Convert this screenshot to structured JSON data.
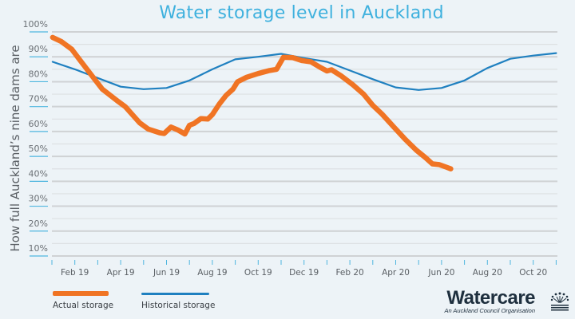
{
  "chart_data": {
    "type": "line",
    "title": "Water storage level in Auckland",
    "xlabel": "",
    "ylabel": "How full Auckland’s nine dams are",
    "ylim": [
      0,
      100
    ],
    "yticks": [
      "10%",
      "20%",
      "30%",
      "40%",
      "50%",
      "60%",
      "70%",
      "80%",
      "90%",
      "100%"
    ],
    "ytick_values": [
      10,
      20,
      30,
      40,
      50,
      60,
      70,
      80,
      90,
      100
    ],
    "xlim_months": [
      0,
      22
    ],
    "x_unit": "months since Jan 2019",
    "xticks_months": [
      0,
      1,
      2,
      3,
      4,
      5,
      6,
      7,
      8,
      9,
      10,
      11,
      12,
      13,
      14,
      15,
      16,
      17,
      18,
      19,
      20,
      21,
      22
    ],
    "xtick_labels": [
      {
        "month": 1,
        "label": "Feb 19"
      },
      {
        "month": 3,
        "label": "Apr 19"
      },
      {
        "month": 5,
        "label": "Jun 19"
      },
      {
        "month": 7,
        "label": "Aug 19"
      },
      {
        "month": 9,
        "label": "Oct 19"
      },
      {
        "month": 11,
        "label": "Dec 19"
      },
      {
        "month": 13,
        "label": "Feb 20"
      },
      {
        "month": 15,
        "label": "Apr 20"
      },
      {
        "month": 17,
        "label": "Jun 20"
      },
      {
        "month": 19,
        "label": "Aug 20"
      },
      {
        "month": 21,
        "label": "Oct 20"
      }
    ],
    "grid": true,
    "legend_position": "bottom-left",
    "series": [
      {
        "name": "Actual storage",
        "color": "#f07424",
        "points": [
          [
            0.03,
            97.8
          ],
          [
            0.4,
            96.2
          ],
          [
            0.87,
            93.0
          ],
          [
            1.2,
            89.0
          ],
          [
            1.74,
            82.5
          ],
          [
            2.2,
            77.0
          ],
          [
            2.9,
            72.0
          ],
          [
            3.2,
            70.0
          ],
          [
            3.83,
            63.5
          ],
          [
            4.2,
            61.0
          ],
          [
            4.7,
            59.5
          ],
          [
            4.9,
            59.2
          ],
          [
            5.2,
            61.8
          ],
          [
            5.5,
            60.6
          ],
          [
            5.8,
            59.0
          ],
          [
            6.0,
            62.5
          ],
          [
            6.2,
            63.2
          ],
          [
            6.5,
            65.2
          ],
          [
            6.8,
            65.0
          ],
          [
            7.0,
            66.8
          ],
          [
            7.3,
            71.0
          ],
          [
            7.6,
            74.5
          ],
          [
            7.9,
            77.0
          ],
          [
            8.1,
            80.0
          ],
          [
            8.5,
            81.8
          ],
          [
            9.0,
            83.3
          ],
          [
            9.5,
            84.5
          ],
          [
            9.8,
            85.0
          ],
          [
            10.1,
            89.8
          ],
          [
            10.5,
            89.7
          ],
          [
            10.9,
            88.5
          ],
          [
            11.3,
            88.0
          ],
          [
            11.7,
            85.8
          ],
          [
            12.0,
            84.3
          ],
          [
            12.2,
            84.8
          ],
          [
            12.6,
            82.5
          ],
          [
            13.1,
            79.0
          ],
          [
            13.6,
            75.0
          ],
          [
            14.0,
            70.5
          ],
          [
            14.4,
            67.0
          ],
          [
            14.9,
            62.0
          ],
          [
            15.4,
            57.0
          ],
          [
            15.9,
            52.5
          ],
          [
            16.3,
            49.5
          ],
          [
            16.6,
            47.0
          ],
          [
            16.9,
            46.7
          ],
          [
            17.2,
            45.7
          ],
          [
            17.4,
            45.0
          ]
        ]
      },
      {
        "name": "Historical storage",
        "color": "#1f80c0",
        "points": [
          [
            0.03,
            88.0
          ],
          [
            1.0,
            85.0
          ],
          [
            2.0,
            81.5
          ],
          [
            3.0,
            78.0
          ],
          [
            4.0,
            77.0
          ],
          [
            5.0,
            77.5
          ],
          [
            6.0,
            80.5
          ],
          [
            7.0,
            85.0
          ],
          [
            8.0,
            89.0
          ],
          [
            9.0,
            90.0
          ],
          [
            10.0,
            91.2
          ],
          [
            11.0,
            89.5
          ],
          [
            12.0,
            88.0
          ],
          [
            13.0,
            84.5
          ],
          [
            14.0,
            81.0
          ],
          [
            15.0,
            77.7
          ],
          [
            16.0,
            76.7
          ],
          [
            17.0,
            77.5
          ],
          [
            18.0,
            80.5
          ],
          [
            19.0,
            85.5
          ],
          [
            20.0,
            89.2
          ],
          [
            21.0,
            90.5
          ],
          [
            22.0,
            91.5
          ]
        ]
      }
    ]
  },
  "legend": {
    "actual_label": "Actual storage",
    "historical_label": "Historical storage"
  },
  "logo": {
    "brand": "Watercare",
    "tagline": "An Auckland Council Organisation"
  }
}
